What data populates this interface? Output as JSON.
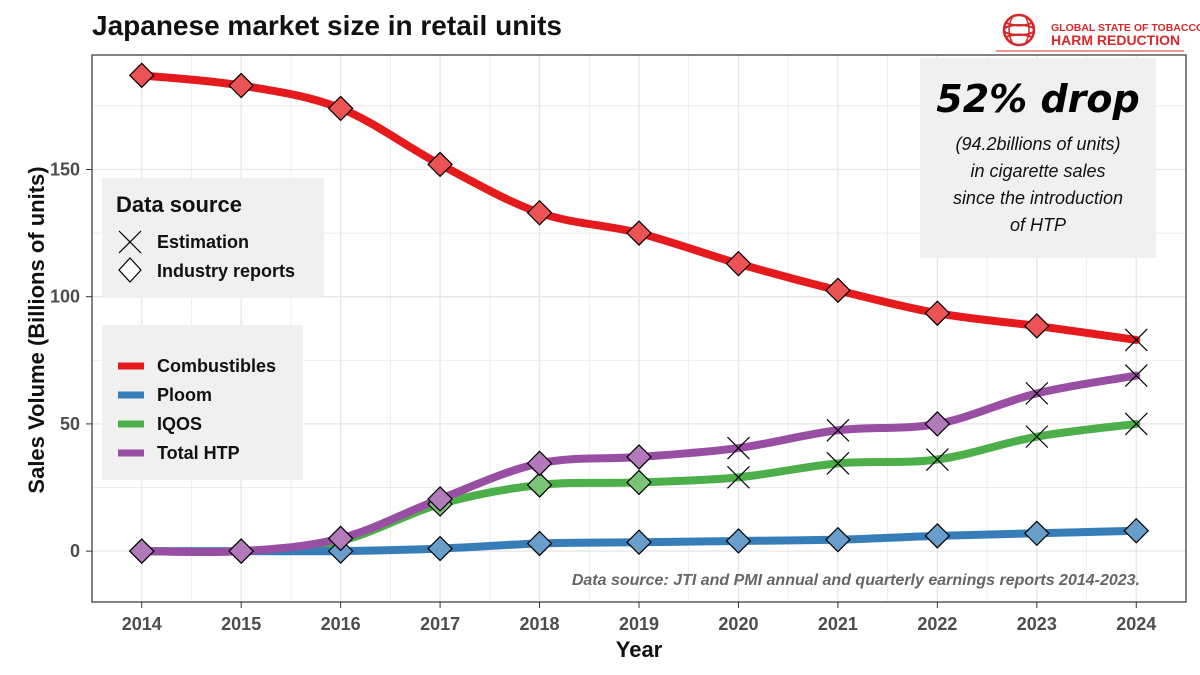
{
  "chart_data": {
    "type": "line",
    "title": "Japanese market size in retail units",
    "xlabel": "Year",
    "ylabel": "Sales Volume (Billions of units)",
    "x": [
      2014,
      2015,
      2016,
      2017,
      2018,
      2019,
      2020,
      2021,
      2022,
      2023,
      2024
    ],
    "xlim": [
      2013.5,
      2024.5
    ],
    "ylim": [
      -20,
      195
    ],
    "yticks": [
      0,
      50,
      100,
      150
    ],
    "grid": true,
    "series": [
      {
        "name": "Combustibles",
        "color": "#e41a1c",
        "values": [
          187,
          183,
          174,
          152,
          133,
          125,
          113,
          102.5,
          93.5,
          88.5,
          83
        ],
        "markers": [
          "Industry reports",
          "Industry reports",
          "Industry reports",
          "Industry reports",
          "Industry reports",
          "Industry reports",
          "Industry reports",
          "Industry reports",
          "Industry reports",
          "Industry reports",
          "Estimation"
        ]
      },
      {
        "name": "Ploom",
        "color": "#377eb8",
        "values": [
          0,
          0,
          0,
          1,
          3,
          3.5,
          4,
          4.5,
          6,
          7,
          8
        ],
        "markers": [
          "Industry reports",
          "Industry reports",
          "Industry reports",
          "Industry reports",
          "Industry reports",
          "Industry reports",
          "Industry reports",
          "Industry reports",
          "Industry reports",
          "Industry reports",
          "Industry reports"
        ]
      },
      {
        "name": "IQOS",
        "color": "#4daf4a",
        "values": [
          0,
          0,
          4,
          18.5,
          26,
          27,
          29,
          34.5,
          36,
          45,
          50
        ],
        "markers": [
          "none",
          "none",
          "none",
          "Industry reports",
          "Industry reports",
          "Industry reports",
          "Estimation",
          "Estimation",
          "Estimation",
          "Estimation",
          "Estimation"
        ]
      },
      {
        "name": "Total HTP",
        "color": "#984ea3",
        "values": [
          0,
          0,
          5,
          20.5,
          34.5,
          37,
          40.5,
          47.5,
          50,
          62,
          69
        ],
        "markers": [
          "Industry reports",
          "Industry reports",
          "Industry reports",
          "Industry reports",
          "Industry reports",
          "Industry reports",
          "Estimation",
          "Estimation",
          "Industry reports",
          "Estimation",
          "Estimation"
        ]
      }
    ],
    "legend_shapes": {
      "title": "Data source",
      "items": [
        {
          "label": "Estimation",
          "shape": "cross"
        },
        {
          "label": "Industry reports",
          "shape": "diamond"
        }
      ],
      "placement": "left"
    },
    "legend_series_placement": "left",
    "annotation": {
      "headline": "52% drop",
      "lines": [
        "(94.2billions of units)",
        "in cigarette sales",
        "since the introduction",
        "of HTP"
      ]
    },
    "source_note": "Data source: JTI and PMI annual and quarterly earnings reports 2014-2023."
  },
  "logo": {
    "line1": "GLOBAL STATE OF TOBACCO",
    "line2": "HARM REDUCTION",
    "color": "#d62828"
  },
  "colors": {
    "panel_border": "#333333",
    "grid": "#e6e6e6",
    "legend_bg": "#f0f0f0"
  }
}
